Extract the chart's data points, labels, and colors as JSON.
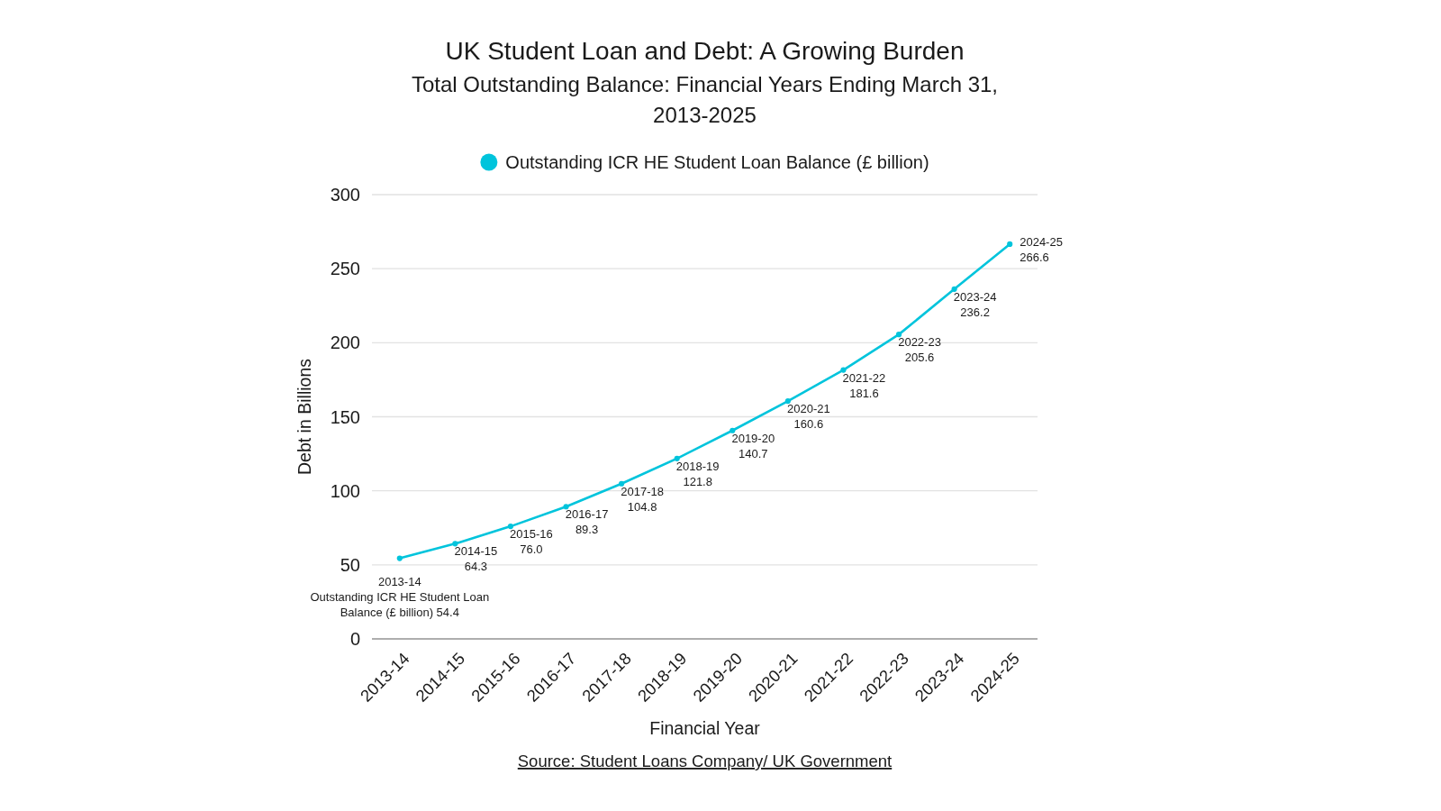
{
  "chart_data": {
    "type": "line",
    "title": "UK Student Loan and Debt: A Growing Burden",
    "subtitle": "Total Outstanding Balance: Financial Years Ending March 31, 2013-2025",
    "xlabel": "Financial Year",
    "ylabel": "Debt in Billions",
    "annotations": [
      "Source: Student Loans Company/ UK Government"
    ],
    "categories": [
      "2013-14",
      "2014-15",
      "2015-16",
      "2016-17",
      "2017-18",
      "2018-19",
      "2019-20",
      "2020-21",
      "2021-22",
      "2022-23",
      "2023-24",
      "2024-25"
    ],
    "series": [
      {
        "name": "Outstanding ICR HE Student Loan Balance (£ billion)",
        "color": "#00c4dc",
        "values": [
          54.4,
          64.3,
          76.0,
          89.3,
          104.8,
          121.8,
          140.7,
          160.6,
          181.6,
          205.6,
          236.2,
          266.6
        ],
        "value_labels": [
          "2013-14\nOutstanding ICR HE Student Loan\nBalance (£ billion) 54.4",
          "2014-15\n64.3",
          "2015-16\n76.0",
          "2016-17\n89.3",
          "2017-18\n104.8",
          "2018-19\n121.8",
          "2019-20\n140.7",
          "2020-21\n160.6",
          "2021-22\n181.6",
          "2022-23\n205.6",
          "2023-24\n236.2",
          "2024-25\n266.6"
        ]
      }
    ],
    "ylim": [
      0,
      300
    ],
    "yticks": [
      0,
      50,
      100,
      150,
      200,
      250,
      300
    ],
    "grid": "y",
    "legend": "top",
    "marker": "circle",
    "line_style": "solid"
  }
}
